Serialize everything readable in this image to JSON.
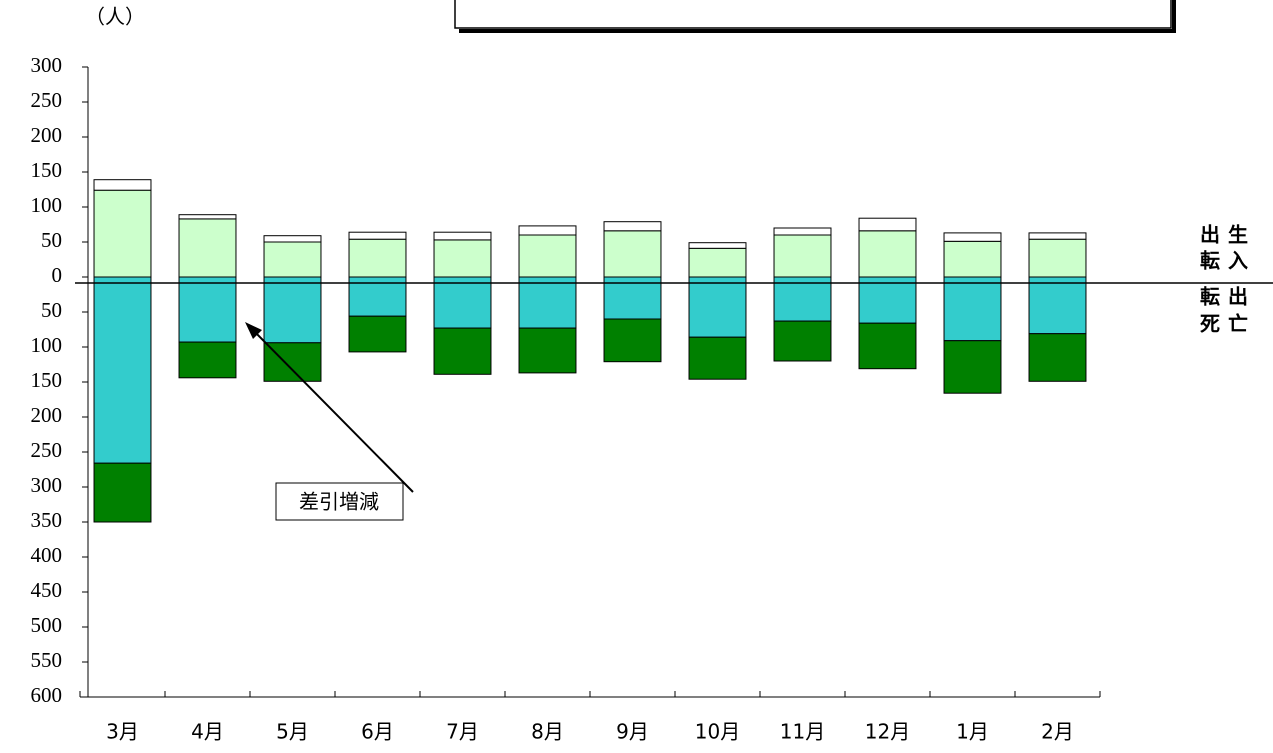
{
  "chart_data": {
    "type": "bar",
    "stacked": true,
    "y_unit_label": "（人）",
    "categories": [
      "3月",
      "4月",
      "5月",
      "6月",
      "7月",
      "8月",
      "9月",
      "10月",
      "11月",
      "12月",
      "1月",
      "2月"
    ],
    "series": [
      {
        "name": "転入",
        "color": "#ccffcc",
        "values": [
          124,
          83,
          50,
          54,
          53,
          60,
          66,
          41,
          60,
          66,
          51,
          54
        ]
      },
      {
        "name": "出生",
        "color": "#ffffff",
        "values": [
          15,
          6,
          9,
          10,
          11,
          13,
          13,
          8,
          10,
          18,
          12,
          9
        ]
      },
      {
        "name": "転出",
        "color": "#33cccc",
        "values": [
          -266,
          -93,
          -94,
          -56,
          -73,
          -73,
          -60,
          -86,
          -63,
          -66,
          -91,
          -81
        ]
      },
      {
        "name": "死亡",
        "color": "#008000",
        "values": [
          -84,
          -51,
          -55,
          -51,
          -66,
          -64,
          -61,
          -60,
          -57,
          -65,
          -75,
          -68
        ]
      }
    ],
    "legend_order": [
      "出生",
      "転入",
      "転出",
      "死亡"
    ],
    "ylim": [
      -600,
      300
    ],
    "yticks": [
      300,
      250,
      200,
      150,
      100,
      50,
      0,
      {
        "value": -50,
        "label": "50"
      },
      {
        "value": -100,
        "label": "100"
      },
      {
        "value": -150,
        "label": "150"
      },
      {
        "value": -200,
        "label": "200"
      },
      {
        "value": -250,
        "label": "250"
      },
      {
        "value": -300,
        "label": "300"
      },
      {
        "value": -350,
        "label": "350"
      },
      {
        "value": -400,
        "label": "400"
      },
      {
        "value": -450,
        "label": "450"
      },
      {
        "value": -500,
        "label": "500"
      },
      {
        "value": -550,
        "label": "550"
      },
      {
        "value": -600,
        "label": "600"
      }
    ],
    "negative_tick_color": "#ff0000",
    "annotation": "差引増減"
  }
}
